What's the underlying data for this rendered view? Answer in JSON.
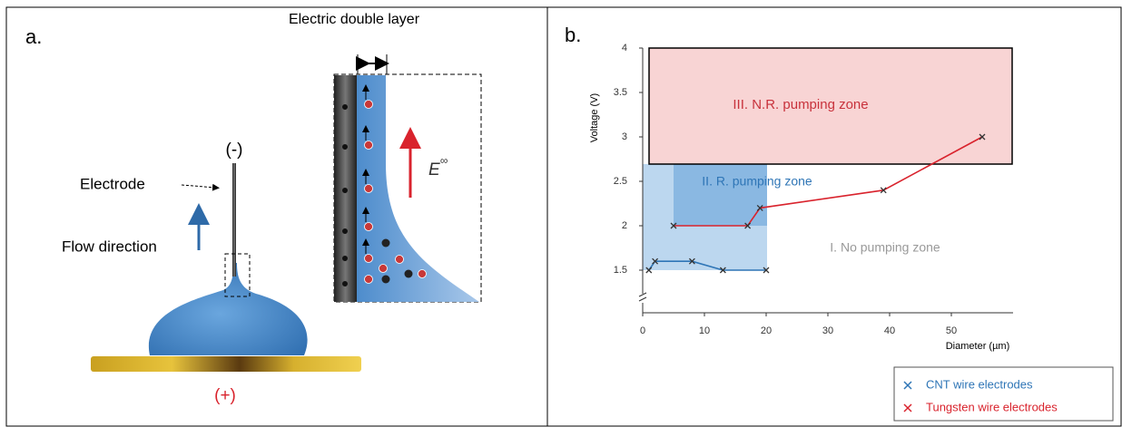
{
  "panel_a": {
    "label": "a.",
    "edl": "Electric double layer",
    "minus": "(-)",
    "electrode": "Electrode",
    "flow": "Flow direction",
    "plus": "(+)",
    "field_symbol": "E",
    "field_sup": "∞"
  },
  "chart_data": {
    "type": "line",
    "panel_label": "b.",
    "x_label": "Diameter (µm)",
    "y_label": "Voltage (V)",
    "xlim": [
      0,
      60
    ],
    "ylim": [
      1,
      4
    ],
    "xticks": [
      0,
      10,
      20,
      30,
      40,
      50
    ],
    "yticks": [
      1.5,
      2,
      2.5,
      3,
      3.5,
      4
    ],
    "zones": [
      "III. N.R. pumping zone",
      "II. R. pumping zone",
      "I. No pumping zone"
    ],
    "series": [
      {
        "name": "CNT wire electrodes",
        "color": "#2e75b6",
        "x": [
          1,
          2,
          8,
          13,
          20
        ],
        "values": [
          1.5,
          1.6,
          1.6,
          1.5,
          1.5
        ]
      },
      {
        "name": "Tungsten wire electrodes",
        "color": "#d9232d",
        "x": [
          5,
          17,
          19,
          39,
          55
        ],
        "values": [
          2,
          2,
          2.2,
          2.4,
          3
        ]
      }
    ],
    "legend": "bottom-right"
  }
}
